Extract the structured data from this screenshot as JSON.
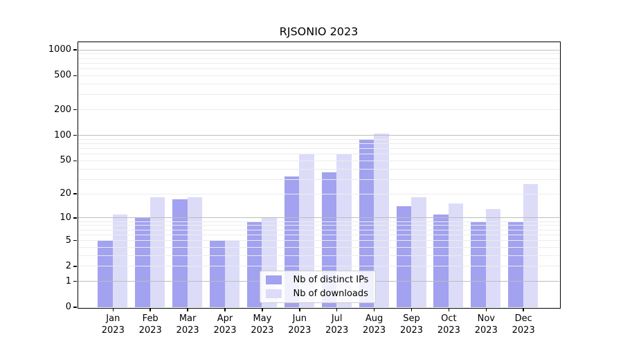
{
  "title": "RJSONIO 2023",
  "colors": {
    "bar_distinct_ips": "#a2a2f0",
    "bar_downloads": "#dcdcf9",
    "axis": "#000000",
    "major_grid": "#bdbdbd",
    "minor_grid": "#ececec"
  },
  "chart_data": {
    "type": "bar",
    "title": "RJSONIO 2023",
    "categories": [
      "Jan 2023",
      "Feb 2023",
      "Mar 2023",
      "Apr 2023",
      "May 2023",
      "Jun 2023",
      "Jul 2023",
      "Aug 2023",
      "Sep 2023",
      "Oct 2023",
      "Nov 2023",
      "Dec 2023"
    ],
    "series": [
      {
        "name": "Nb of distinct IPs",
        "values": [
          5,
          10,
          17,
          5,
          9,
          32,
          36,
          90,
          14,
          11,
          9,
          9
        ]
      },
      {
        "name": "Nb of downloads",
        "values": [
          11,
          18,
          18,
          5,
          10,
          60,
          60,
          105,
          18,
          15,
          13,
          26
        ]
      }
    ],
    "xlabel": "",
    "ylabel": "",
    "yscale": "log1p",
    "y_ticks": [
      0,
      1,
      2,
      5,
      10,
      20,
      50,
      100,
      200,
      500,
      1000
    ],
    "ylim": [
      0,
      1230
    ],
    "grid": "on",
    "legend_position": "lower center inside"
  }
}
